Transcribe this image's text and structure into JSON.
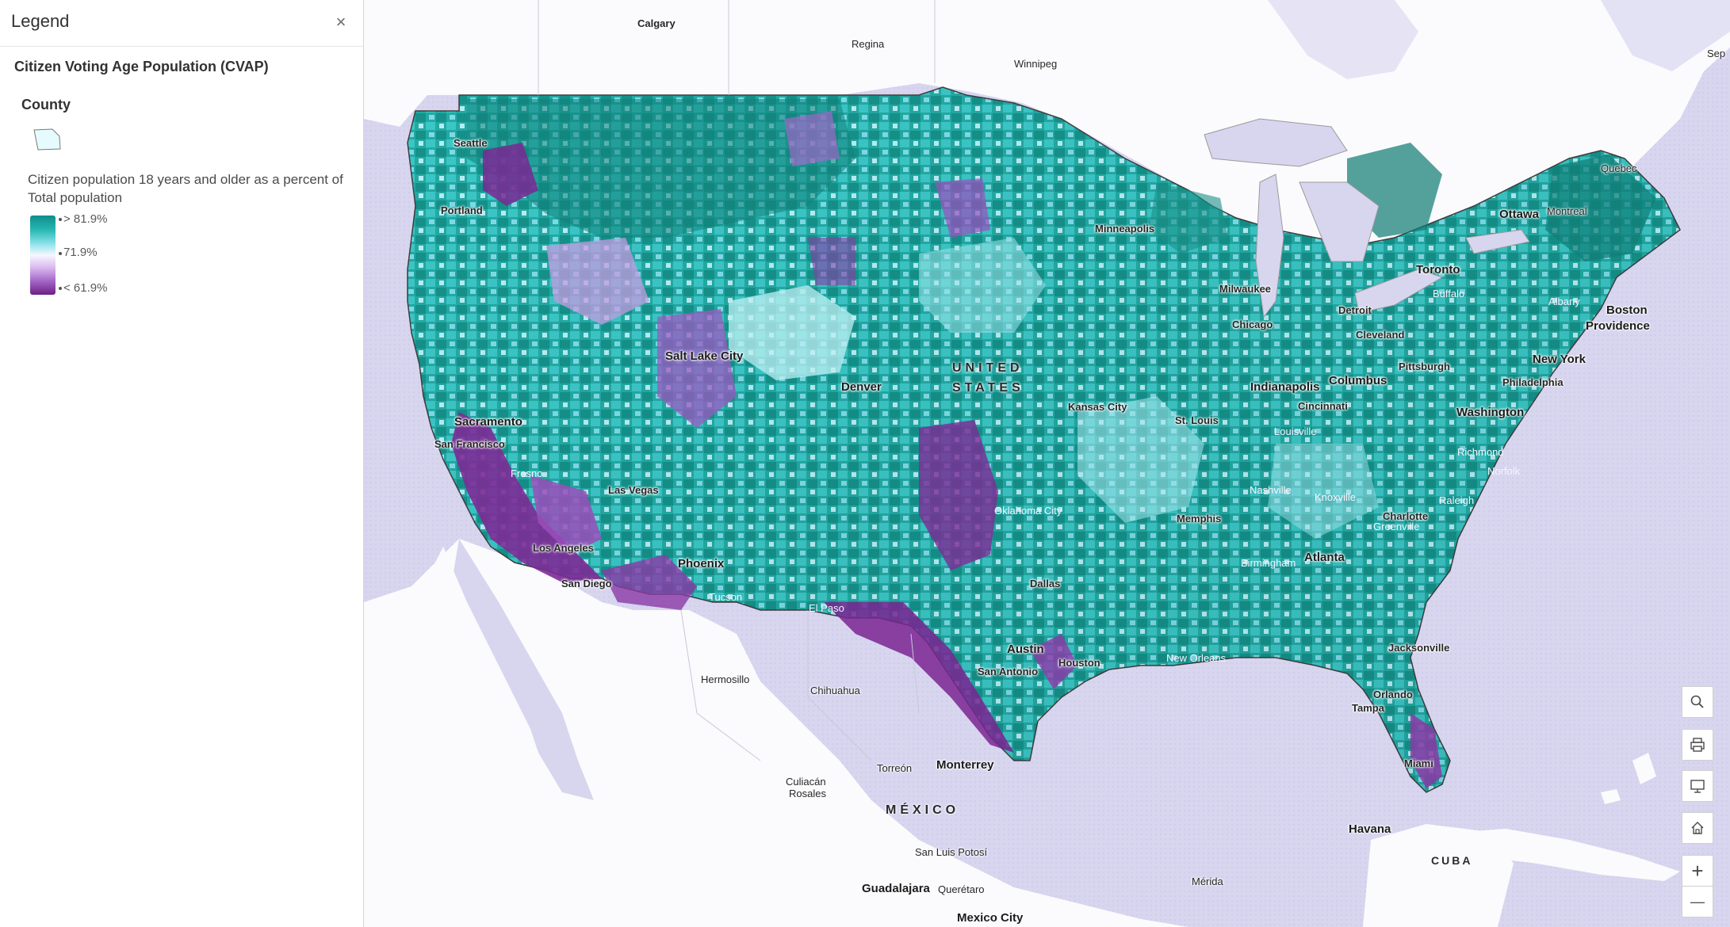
{
  "legend": {
    "title": "Legend",
    "close_glyph": "×",
    "layer_title": "Citizen Voting Age Population (CVAP)",
    "group_title": "County",
    "field_label": "Citizen population 18 years and older as a percent of Total population",
    "ramp": {
      "high_label": "> 81.9%",
      "mid_label": "71.9%",
      "low_label": "< 61.9%",
      "high_color": "#0f8d8a",
      "mid_color": "#f7f7ff",
      "low_color": "#6d1f84"
    }
  },
  "map": {
    "countries": {
      "us_line1": "UNITED",
      "us_line2": "STATES",
      "mexico": "MÉXICO",
      "cuba": "CUBA"
    },
    "cities": {
      "calgary": "Calgary",
      "regina": "Regina",
      "winnipeg": "Winnipeg",
      "quebec": "Quebec",
      "montreal": "Montreal",
      "ottawa": "Ottawa",
      "toronto": "Toronto",
      "buffalo": "Buffalo",
      "albany": "Albany",
      "boston": "Boston",
      "providence": "Providence",
      "new_york": "New York",
      "philadelphia": "Philadelphia",
      "washington": "Washington",
      "richmond": "Richmond",
      "norfolk": "Norfolk",
      "raleigh": "Raleigh",
      "charlotte": "Charlotte",
      "greenville": "Greenville",
      "atlanta": "Atlanta",
      "jacksonville": "Jacksonville",
      "orlando": "Orlando",
      "tampa": "Tampa",
      "miami": "Miami",
      "havana": "Havana",
      "merida": "Mérida",
      "seattle": "Seattle",
      "portland": "Portland",
      "sacramento": "Sacramento",
      "san_francisco": "San Francisco",
      "fresno": "Fresno",
      "las_vegas": "Las Vegas",
      "los_angeles": "Los Angeles",
      "san_diego": "San Diego",
      "phoenix": "Phoenix",
      "tucson": "Tucson",
      "salt_lake_city": "Salt Lake City",
      "denver": "Denver",
      "el_paso": "El Paso",
      "hermosillo": "Hermosillo",
      "chihuahua": "Chihuahua",
      "torreon": "Torreón",
      "monterrey": "Monterrey",
      "culiacan_line1": "Culiacán",
      "culiacan_line2": "Rosales",
      "san_luis_potosi": "San Luis Potosí",
      "guadalajara": "Guadalajara",
      "queretaro": "Querétaro",
      "mexico_city": "Mexico City",
      "minneapolis": "Minneapolis",
      "milwaukee": "Milwaukee",
      "chicago": "Chicago",
      "detroit": "Detroit",
      "cleveland": "Cleveland",
      "pittsburgh": "Pittsburgh",
      "indianapolis": "Indianapolis",
      "columbus": "Columbus",
      "cincinnati": "Cincinnati",
      "louisville": "Louisville",
      "st_louis": "St. Louis",
      "kansas_city": "Kansas City",
      "oklahoma_city": "Oklahoma City",
      "dallas": "Dallas",
      "austin": "Austin",
      "san_antonio": "San Antonio",
      "houston": "Houston",
      "new_orleans": "New Orleans",
      "memphis": "Memphis",
      "nashville": "Nashville",
      "knoxville": "Knoxville",
      "birmingham": "Birmingham",
      "sep": "Sep"
    },
    "colors": {
      "water": "#d8d5ef",
      "land": "#ffffff",
      "teal": "#1fa6a0",
      "dark_teal": "#0c7a72",
      "purple": "#8b3aa6"
    }
  },
  "widgets": {
    "search_icon": "search-icon",
    "print_icon": "print-icon",
    "presentation_icon": "presentation-icon",
    "home_icon": "home-icon",
    "zoom_in_glyph": "+",
    "zoom_out_glyph": "—"
  }
}
